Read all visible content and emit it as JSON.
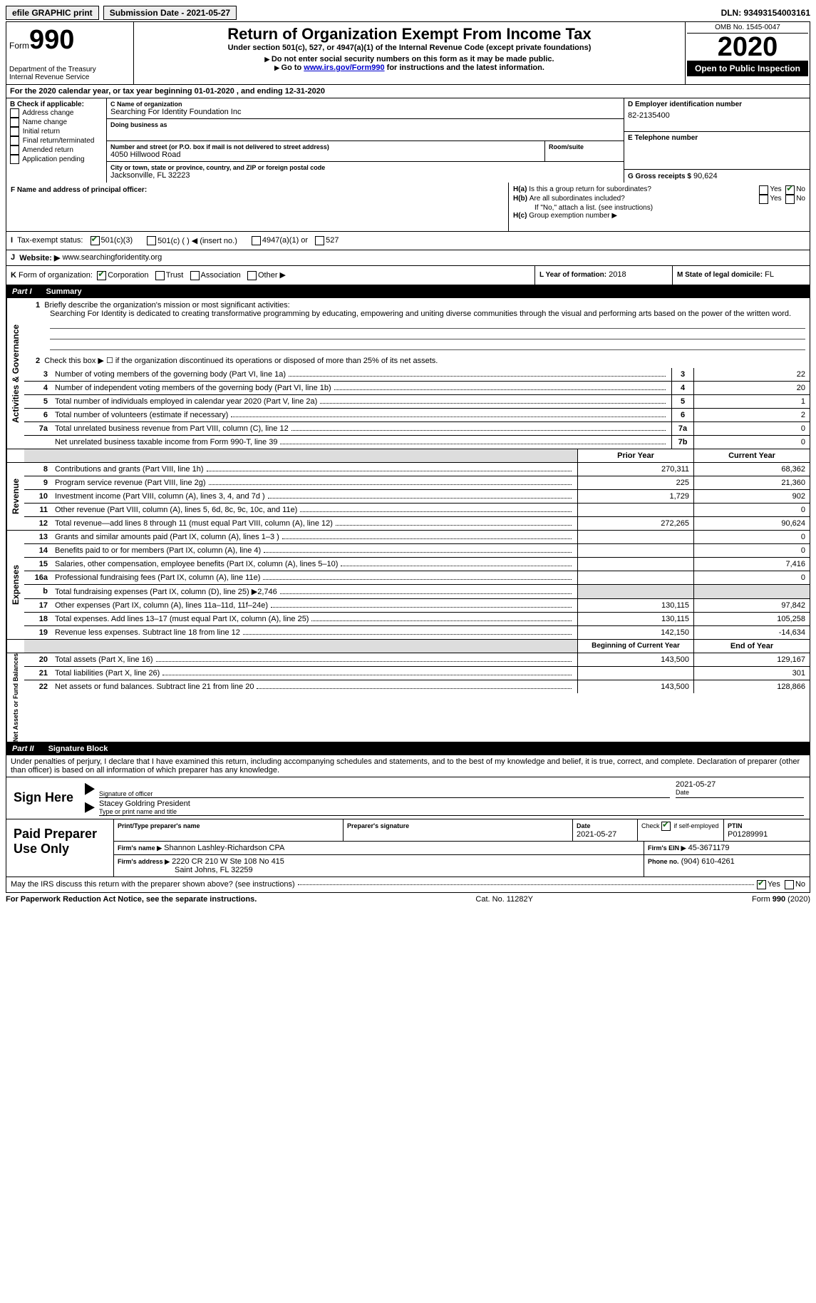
{
  "top": {
    "efile": "efile GRAPHIC print",
    "submission_label": "Submission Date - 2021-05-27",
    "dln": "DLN: 93493154003161"
  },
  "header": {
    "form_word": "Form",
    "form_num": "990",
    "title": "Return of Organization Exempt From Income Tax",
    "subtitle": "Under section 501(c), 527, or 4947(a)(1) of the Internal Revenue Code (except private foundations)",
    "note1": "Do not enter social security numbers on this form as it may be made public.",
    "note2_pre": "Go to ",
    "note2_link": "www.irs.gov/Form990",
    "note2_post": " for instructions and the latest information.",
    "dept": "Department of the Treasury\nInternal Revenue Service",
    "omb": "OMB No. 1545-0047",
    "year": "2020",
    "open": "Open to Public Inspection"
  },
  "lineA": "For the 2020 calendar year, or tax year beginning 01-01-2020   , and ending 12-31-2020",
  "boxB": {
    "title": "B Check if applicable:",
    "items": [
      "Address change",
      "Name change",
      "Initial return",
      "Final return/terminated",
      "Amended return",
      "Application pending"
    ]
  },
  "boxC": {
    "name_lbl": "C Name of organization",
    "name": "Searching For Identity Foundation Inc",
    "dba_lbl": "Doing business as",
    "addr_lbl": "Number and street (or P.O. box if mail is not delivered to street address)",
    "room_lbl": "Room/suite",
    "addr": "4050 Hillwood Road",
    "city_lbl": "City or town, state or province, country, and ZIP or foreign postal code",
    "city": "Jacksonville, FL  32223"
  },
  "boxD": {
    "lbl": "D Employer identification number",
    "val": "82-2135400"
  },
  "boxE": {
    "lbl": "E Telephone number"
  },
  "boxG": {
    "lbl": "G Gross receipts $",
    "val": "90,624"
  },
  "boxF": {
    "lbl": "F  Name and address of principal officer:"
  },
  "boxH": {
    "a": "Is this a group return for subordinates?",
    "b": "Are all subordinates included?",
    "bnote": "If \"No,\" attach a list. (see instructions)",
    "c": "Group exemption number ▶"
  },
  "taxI": {
    "lbl": "Tax-exempt status:",
    "opts": [
      "501(c)(3)",
      "501(c) (   ) ◀ (insert no.)",
      "4947(a)(1) or",
      "527"
    ]
  },
  "boxJ": {
    "lbl": "Website: ▶",
    "val": "www.searchingforidentity.org"
  },
  "boxK": {
    "lbl": "Form of organization:",
    "opts": [
      "Corporation",
      "Trust",
      "Association",
      "Other ▶"
    ]
  },
  "boxL": {
    "lbl": "L Year of formation:",
    "val": "2018"
  },
  "boxM": {
    "lbl": "M State of legal domicile:",
    "val": "FL"
  },
  "part1": {
    "lbl": "Part I",
    "title": "Summary"
  },
  "summary": {
    "q1": "Briefly describe the organization's mission or most significant activities:",
    "q1ans": "Searching For Identity is dedicated to creating transformative programming by educating, empowering and uniting diverse communities through the visual and performing arts based on the power of the written word.",
    "q2": "Check this box ▶ ☐  if the organization discontinued its operations or disposed of more than 25% of its net assets.",
    "lines": [
      {
        "n": "3",
        "d": "Number of voting members of the governing body (Part VI, line 1a)",
        "box": "3",
        "v": "22"
      },
      {
        "n": "4",
        "d": "Number of independent voting members of the governing body (Part VI, line 1b)",
        "box": "4",
        "v": "20"
      },
      {
        "n": "5",
        "d": "Total number of individuals employed in calendar year 2020 (Part V, line 2a)",
        "box": "5",
        "v": "1"
      },
      {
        "n": "6",
        "d": "Total number of volunteers (estimate if necessary)",
        "box": "6",
        "v": "2"
      },
      {
        "n": "7a",
        "d": "Total unrelated business revenue from Part VIII, column (C), line 12",
        "box": "7a",
        "v": "0"
      },
      {
        "n": "",
        "d": "Net unrelated business taxable income from Form 990-T, line 39",
        "box": "7b",
        "v": "0"
      }
    ]
  },
  "revexp": {
    "hdr_prior": "Prior Year",
    "hdr_curr": "Current Year",
    "revenue": [
      {
        "n": "8",
        "d": "Contributions and grants (Part VIII, line 1h)",
        "p": "270,311",
        "c": "68,362"
      },
      {
        "n": "9",
        "d": "Program service revenue (Part VIII, line 2g)",
        "p": "225",
        "c": "21,360"
      },
      {
        "n": "10",
        "d": "Investment income (Part VIII, column (A), lines 3, 4, and 7d )",
        "p": "1,729",
        "c": "902"
      },
      {
        "n": "11",
        "d": "Other revenue (Part VIII, column (A), lines 5, 6d, 8c, 9c, 10c, and 11e)",
        "p": "",
        "c": "0"
      },
      {
        "n": "12",
        "d": "Total revenue—add lines 8 through 11 (must equal Part VIII, column (A), line 12)",
        "p": "272,265",
        "c": "90,624"
      }
    ],
    "expenses": [
      {
        "n": "13",
        "d": "Grants and similar amounts paid (Part IX, column (A), lines 1–3 )",
        "p": "",
        "c": "0"
      },
      {
        "n": "14",
        "d": "Benefits paid to or for members (Part IX, column (A), line 4)",
        "p": "",
        "c": "0"
      },
      {
        "n": "15",
        "d": "Salaries, other compensation, employee benefits (Part IX, column (A), lines 5–10)",
        "p": "",
        "c": "7,416"
      },
      {
        "n": "16a",
        "d": "Professional fundraising fees (Part IX, column (A), line 11e)",
        "p": "",
        "c": "0"
      },
      {
        "n": "b",
        "d": "Total fundraising expenses (Part IX, column (D), line 25) ▶2,746",
        "p": "shade",
        "c": "shade"
      },
      {
        "n": "17",
        "d": "Other expenses (Part IX, column (A), lines 11a–11d, 11f–24e)",
        "p": "130,115",
        "c": "97,842"
      },
      {
        "n": "18",
        "d": "Total expenses. Add lines 13–17 (must equal Part IX, column (A), line 25)",
        "p": "130,115",
        "c": "105,258"
      },
      {
        "n": "19",
        "d": "Revenue less expenses. Subtract line 18 from line 12",
        "p": "142,150",
        "c": "-14,634"
      }
    ],
    "hdr_begin": "Beginning of Current Year",
    "hdr_end": "End of Year",
    "net": [
      {
        "n": "20",
        "d": "Total assets (Part X, line 16)",
        "p": "143,500",
        "c": "129,167"
      },
      {
        "n": "21",
        "d": "Total liabilities (Part X, line 26)",
        "p": "",
        "c": "301"
      },
      {
        "n": "22",
        "d": "Net assets or fund balances. Subtract line 21 from line 20",
        "p": "143,500",
        "c": "128,866"
      }
    ]
  },
  "sections": {
    "act_gov": "Activities & Governance",
    "rev": "Revenue",
    "exp": "Expenses",
    "net": "Net Assets or Fund Balances"
  },
  "part2": {
    "lbl": "Part II",
    "title": "Signature Block"
  },
  "penalties": "Under penalties of perjury, I declare that I have examined this return, including accompanying schedules and statements, and to the best of my knowledge and belief, it is true, correct, and complete. Declaration of preparer (other than officer) is based on all information of which preparer has any knowledge.",
  "sign": {
    "sign_here": "Sign Here",
    "sig_lbl": "Signature of officer",
    "date_lbl": "Date",
    "date": "2021-05-27",
    "name": "Stacey Goldring  President",
    "name_lbl": "Type or print name and title"
  },
  "paid": {
    "title": "Paid Preparer Use Only",
    "col_name": "Print/Type preparer's name",
    "col_sig": "Preparer's signature",
    "col_date": "Date",
    "date": "2021-05-27",
    "check_lbl": "Check ☑ if self-employed",
    "ptin_lbl": "PTIN",
    "ptin": "P01289991",
    "firm_name_lbl": "Firm's name   ▶",
    "firm_name": "Shannon Lashley-Richardson CPA",
    "firm_ein_lbl": "Firm's EIN ▶",
    "firm_ein": "45-3671179",
    "firm_addr_lbl": "Firm's address ▶",
    "firm_addr": "2220 CR 210 W Ste 108 No 415",
    "firm_city": "Saint Johns, FL  32259",
    "phone_lbl": "Phone no.",
    "phone": "(904) 610-4261"
  },
  "discuss": "May the IRS discuss this return with the preparer shown above? (see instructions)",
  "footer": {
    "pra": "For Paperwork Reduction Act Notice, see the separate instructions.",
    "cat": "Cat. No. 11282Y",
    "form": "Form 990 (2020)"
  }
}
